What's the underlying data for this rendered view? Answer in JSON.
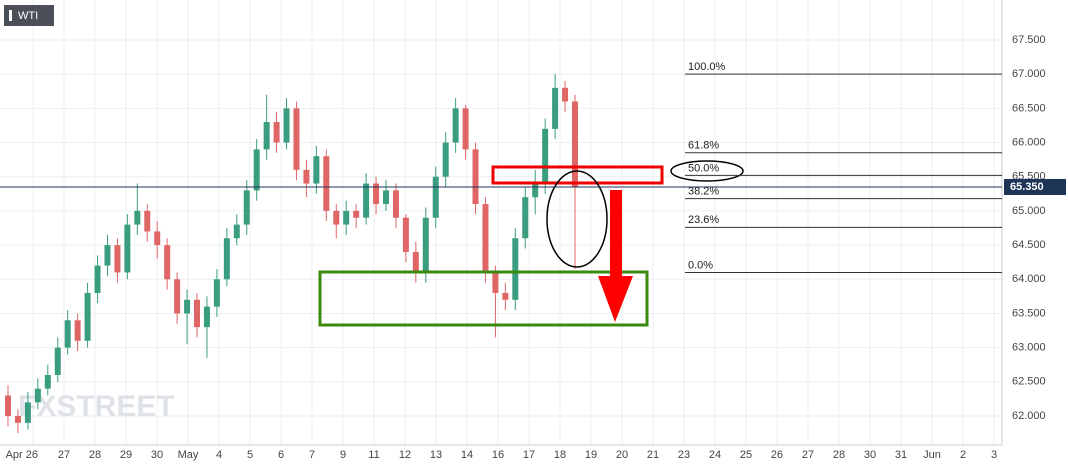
{
  "chart_data": {
    "type": "candlestick",
    "title": "WTI",
    "watermark": "FXSTREET",
    "ylim": [
      61.576,
      68.085
    ],
    "yticks": [
      {
        "value": 62.0,
        "label": "62.000"
      },
      {
        "value": 62.5,
        "label": "62.500"
      },
      {
        "value": 63.0,
        "label": "63.000"
      },
      {
        "value": 63.5,
        "label": "63.500"
      },
      {
        "value": 64.0,
        "label": "64.000"
      },
      {
        "value": 64.5,
        "label": "64.500"
      },
      {
        "value": 65.0,
        "label": "65.000"
      },
      {
        "value": 65.5,
        "label": "65.500"
      },
      {
        "value": 66.0,
        "label": "66.000"
      },
      {
        "value": 66.5,
        "label": "66.500"
      },
      {
        "value": 67.0,
        "label": "67.000"
      },
      {
        "value": 67.5,
        "label": "67.500"
      }
    ],
    "x_labels": [
      "Apr 26",
      "27",
      "28",
      "29",
      "30",
      "May",
      "4",
      "5",
      "6",
      "7",
      "9",
      "11",
      "12",
      "13",
      "14",
      "16",
      "17",
      "18",
      "19",
      "20",
      "21",
      "23",
      "24",
      "25",
      "26",
      "27",
      "28",
      "30",
      "31",
      "Jun",
      "2",
      "3"
    ],
    "up_color": "#3a9d7f",
    "down_color": "#e06666",
    "grid": true,
    "open": [
      62.3,
      62.0,
      61.9,
      62.2,
      62.4,
      62.6,
      63.0,
      63.4,
      63.1,
      63.8,
      64.2,
      64.5,
      64.1,
      64.8,
      65.0,
      64.7,
      64.5,
      64.0,
      63.5,
      63.7,
      63.3,
      63.6,
      64.0,
      64.6,
      64.8,
      65.3,
      65.9,
      66.3,
      66.0,
      66.5,
      65.6,
      65.4,
      65.8,
      65.0,
      64.8,
      65.0,
      64.9,
      65.4,
      65.1,
      65.3,
      64.9,
      64.4,
      64.1,
      64.9,
      65.5,
      66.0,
      66.5,
      65.9,
      65.1,
      64.1,
      63.8,
      63.7,
      64.6,
      65.2,
      65.4,
      66.2,
      66.8,
      66.6
    ],
    "high": [
      62.45,
      62.1,
      62.35,
      62.55,
      62.75,
      63.15,
      63.55,
      63.5,
      63.95,
      64.35,
      64.65,
      64.6,
      64.95,
      65.4,
      65.1,
      64.85,
      64.6,
      64.1,
      63.85,
      63.8,
      63.75,
      64.15,
      64.75,
      64.95,
      65.45,
      66.05,
      66.7,
      66.45,
      66.65,
      66.6,
      65.75,
      65.95,
      65.9,
      65.1,
      65.15,
      65.1,
      65.55,
      65.5,
      65.45,
      65.4,
      64.95,
      64.55,
      65.05,
      65.65,
      66.15,
      66.65,
      66.55,
      66.0,
      65.2,
      64.2,
      63.95,
      64.75,
      65.35,
      65.6,
      66.35,
      67.0,
      66.9,
      66.7
    ],
    "low": [
      61.85,
      61.75,
      61.8,
      62.1,
      62.3,
      62.5,
      62.9,
      62.95,
      63.0,
      63.65,
      64.05,
      63.95,
      64.0,
      64.65,
      64.55,
      64.3,
      63.85,
      63.35,
      63.05,
      63.15,
      62.85,
      63.45,
      63.9,
      64.5,
      64.65,
      65.15,
      65.75,
      65.85,
      65.9,
      65.45,
      65.2,
      65.25,
      64.85,
      64.6,
      64.65,
      64.75,
      64.8,
      64.95,
      65.0,
      64.75,
      64.25,
      63.95,
      63.95,
      64.75,
      65.35,
      65.85,
      65.75,
      64.95,
      63.95,
      63.15,
      63.55,
      63.55,
      64.45,
      64.95,
      65.25,
      66.05,
      66.45,
      64.15
    ],
    "close": [
      62.0,
      61.9,
      62.2,
      62.4,
      62.6,
      63.0,
      63.4,
      63.1,
      63.8,
      64.2,
      64.5,
      64.1,
      64.8,
      65.0,
      64.7,
      64.5,
      64.0,
      63.5,
      63.7,
      63.3,
      63.6,
      64.0,
      64.6,
      64.8,
      65.3,
      65.9,
      66.3,
      66.0,
      66.5,
      65.6,
      65.4,
      65.8,
      65.0,
      64.8,
      65.0,
      64.9,
      65.4,
      65.1,
      65.3,
      64.9,
      64.4,
      64.1,
      64.9,
      65.5,
      66.0,
      66.5,
      65.9,
      65.1,
      64.1,
      63.8,
      63.7,
      64.6,
      65.2,
      65.4,
      66.2,
      66.8,
      66.6,
      65.35
    ],
    "fib_levels": [
      {
        "value": 67.0,
        "label": "100.0%"
      },
      {
        "value": 65.85,
        "label": "61.8%"
      },
      {
        "value": 65.52,
        "label": "50.0%"
      },
      {
        "value": 65.18,
        "label": "38.2%"
      },
      {
        "value": 64.76,
        "label": "23.6%"
      },
      {
        "value": 64.1,
        "label": "0.0%"
      }
    ],
    "last_price": {
      "value": 65.35,
      "label": "65.350"
    }
  }
}
